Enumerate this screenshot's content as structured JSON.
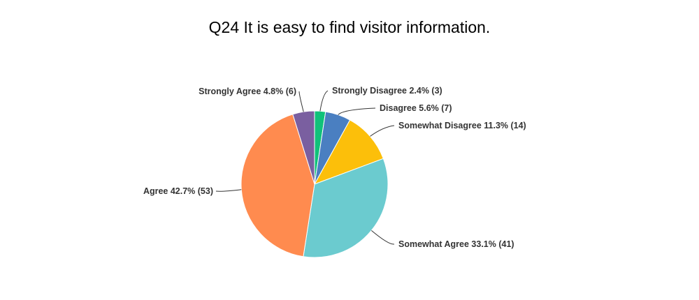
{
  "chart_data": {
    "type": "pie",
    "title": "Q24 It is easy to find visitor information.",
    "slices": [
      {
        "name": "Strongly Disagree",
        "percent": 2.4,
        "count": 3,
        "color": "#10c17a",
        "label": "Strongly Disagree 2.4% (3)"
      },
      {
        "name": "Disagree",
        "percent": 5.6,
        "count": 7,
        "color": "#4a7fc1",
        "label": "Disagree 5.6% (7)"
      },
      {
        "name": "Somewhat Disagree",
        "percent": 11.3,
        "count": 14,
        "color": "#fcbf0a",
        "label": "Somewhat Disagree 11.3% (14)"
      },
      {
        "name": "Somewhat Agree",
        "percent": 33.1,
        "count": 41,
        "color": "#6bcbcf",
        "label": "Somewhat Agree 33.1% (41)"
      },
      {
        "name": "Agree",
        "percent": 42.7,
        "count": 53,
        "color": "#ff8b4f",
        "label": "Agree 42.7% (53)"
      },
      {
        "name": "Strongly Agree",
        "percent": 4.8,
        "count": 6,
        "color": "#7a5fa0",
        "label": "Strongly Agree 4.8% (6)"
      }
    ]
  }
}
